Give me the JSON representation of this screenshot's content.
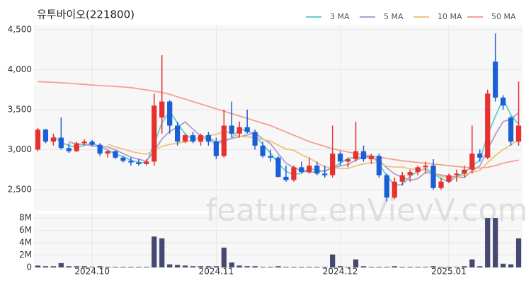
{
  "chart_data": {
    "type": "candlestick",
    "title": "유투바이오(221800)",
    "watermark": "feature.enVievV.com",
    "categories": [
      null,
      null,
      null,
      null,
      null,
      null,
      null,
      "2024.10",
      null,
      null,
      null,
      null,
      null,
      null,
      null,
      null,
      null,
      null,
      null,
      null,
      null,
      null,
      null,
      "2024.11",
      null,
      null,
      null,
      null,
      null,
      null,
      null,
      null,
      null,
      null,
      null,
      null,
      null,
      null,
      null,
      "2024.12",
      null,
      null,
      null,
      null,
      null,
      null,
      null,
      null,
      null,
      null,
      null,
      null,
      null,
      "2025.01",
      null,
      null,
      null,
      null,
      null,
      null,
      null,
      null,
      null
    ],
    "open": [
      3000,
      3250,
      3100,
      3150,
      3020,
      2980,
      3080,
      3100,
      3060,
      2950,
      2980,
      2900,
      2860,
      2840,
      2820,
      2850,
      3400,
      3600,
      3300,
      3100,
      3180,
      3100,
      3180,
      3100,
      2920,
      3300,
      3200,
      3280,
      3220,
      3050,
      2920,
      2900,
      2660,
      2620,
      2780,
      2720,
      2800,
      2700,
      2680,
      2950,
      2850,
      2880,
      2980,
      2880,
      2920,
      2680,
      2400,
      2600,
      2680,
      2720,
      2780,
      2800,
      2520,
      2600,
      2680,
      2700,
      2750,
      2950,
      2900,
      4100,
      3650,
      3400,
      3100
    ],
    "high": [
      3270,
      3260,
      3200,
      3400,
      3080,
      3100,
      3130,
      3120,
      3080,
      3000,
      2990,
      2920,
      2900,
      2880,
      2880,
      3700,
      4180,
      3620,
      3350,
      3200,
      3220,
      3200,
      3220,
      3150,
      3500,
      3600,
      3350,
      3500,
      3250,
      3100,
      3000,
      2920,
      2800,
      2800,
      2850,
      2900,
      2850,
      2800,
      3300,
      2980,
      2900,
      3350,
      3050,
      2950,
      2950,
      2700,
      2650,
      2720,
      2750,
      2800,
      2850,
      2880,
      2650,
      2700,
      2750,
      2800,
      3300,
      3000,
      3750,
      4450,
      3680,
      3420,
      3850
    ],
    "low": [
      2980,
      3080,
      3050,
      3000,
      2960,
      2970,
      3050,
      3040,
      2920,
      2900,
      2880,
      2840,
      2800,
      2800,
      2800,
      2800,
      3200,
      3200,
      3050,
      3080,
      3080,
      3050,
      3050,
      2880,
      2900,
      3150,
      3150,
      3200,
      3000,
      2900,
      2850,
      2650,
      2600,
      2600,
      2700,
      2700,
      2680,
      2650,
      2650,
      2800,
      2780,
      2850,
      2850,
      2820,
      2650,
      2350,
      2380,
      2550,
      2600,
      2680,
      2700,
      2500,
      2500,
      2580,
      2600,
      2650,
      2700,
      2850,
      2880,
      3600,
      3500,
      3050,
      3050
    ],
    "close": [
      3250,
      3100,
      3150,
      3020,
      2980,
      3080,
      3100,
      3060,
      2950,
      2980,
      2900,
      2860,
      2840,
      2820,
      2850,
      3550,
      3600,
      3300,
      3100,
      3180,
      3100,
      3180,
      3100,
      2920,
      3300,
      3200,
      3280,
      3220,
      3050,
      2920,
      2900,
      2660,
      2620,
      2780,
      2720,
      2800,
      2700,
      2680,
      2950,
      2850,
      2880,
      2980,
      2880,
      2920,
      2680,
      2400,
      2600,
      2680,
      2720,
      2780,
      2800,
      2520,
      2600,
      2680,
      2700,
      2750,
      2950,
      2900,
      3700,
      3650,
      3550,
      3100,
      3300
    ],
    "volume": [
      300000,
      200000,
      200000,
      700000,
      200000,
      200000,
      200000,
      100000,
      200000,
      100000,
      100000,
      100000,
      100000,
      100000,
      100000,
      5000000,
      4700000,
      500000,
      400000,
      300000,
      200000,
      200000,
      200000,
      200000,
      3200000,
      800000,
      300000,
      200000,
      200000,
      100000,
      100000,
      200000,
      100000,
      100000,
      100000,
      100000,
      100000,
      100000,
      2100000,
      200000,
      100000,
      1300000,
      200000,
      100000,
      100000,
      100000,
      200000,
      100000,
      100000,
      100000,
      100000,
      200000,
      100000,
      100000,
      100000,
      200000,
      1300000,
      200000,
      8000000,
      8000000,
      600000,
      500000,
      4700000
    ],
    "series": [
      {
        "name": "3 MA",
        "color": "#5ccfd6",
        "values": [
          null,
          null,
          3167,
          3090,
          3050,
          3027,
          3053,
          3080,
          3037,
          2997,
          2943,
          2913,
          2867,
          2840,
          2837,
          3073,
          3333,
          3483,
          3333,
          3193,
          3127,
          3153,
          3127,
          3067,
          3107,
          3140,
          3260,
          3233,
          3183,
          3063,
          2957,
          2827,
          2727,
          2687,
          2707,
          2767,
          2740,
          2727,
          2777,
          2827,
          2893,
          2903,
          2913,
          2927,
          2827,
          2667,
          2560,
          2560,
          2667,
          2727,
          2767,
          2700,
          2640,
          2600,
          2660,
          2710,
          2800,
          2867,
          3183,
          3417,
          3633,
          3433,
          3317
        ]
      },
      {
        "name": "5 MA",
        "color": "#b39ccf",
        "values": [
          null,
          null,
          null,
          null,
          3100,
          3066,
          3066,
          3048,
          3034,
          3034,
          2998,
          2950,
          2906,
          2880,
          2854,
          2984,
          3132,
          3228,
          3280,
          3346,
          3256,
          3172,
          3152,
          3096,
          3120,
          3140,
          3160,
          3184,
          3210,
          3134,
          3074,
          2950,
          2830,
          2776,
          2736,
          2716,
          2724,
          2736,
          2770,
          2796,
          2812,
          2868,
          2908,
          2902,
          2868,
          2772,
          2696,
          2656,
          2616,
          2636,
          2716,
          2700,
          2684,
          2664,
          2660,
          2650,
          2736,
          2796,
          3000,
          3190,
          3350,
          3380,
          3460
        ]
      },
      {
        "name": "10 MA",
        "color": "#f0c27a",
        "values": [
          null,
          null,
          null,
          null,
          null,
          null,
          null,
          null,
          null,
          3067,
          3032,
          3008,
          2977,
          2957,
          2944,
          2991,
          3041,
          3065,
          3080,
          3100,
          3120,
          3152,
          3178,
          3188,
          3233,
          3198,
          3166,
          3158,
          3153,
          3127,
          3107,
          3055,
          3007,
          2993,
          2935,
          2895,
          2837,
          2783,
          2773,
          2766,
          2764,
          2796,
          2822,
          2836,
          2832,
          2792,
          2782,
          2782,
          2759,
          2752,
          2744,
          2698,
          2670,
          2646,
          2648,
          2683,
          2718,
          2740,
          2838,
          2925,
          3000,
          3058,
          3128
        ]
      },
      {
        "name": "50 MA",
        "color": "#f4a08f",
        "values": [
          3850,
          3845,
          3840,
          3835,
          3830,
          3822,
          3815,
          3808,
          3800,
          3795,
          3790,
          3782,
          3775,
          3760,
          3745,
          3730,
          3715,
          3690,
          3660,
          3630,
          3600,
          3570,
          3540,
          3510,
          3480,
          3450,
          3420,
          3390,
          3360,
          3330,
          3300,
          3260,
          3220,
          3180,
          3140,
          3100,
          3070,
          3040,
          3010,
          2990,
          2970,
          2950,
          2935,
          2920,
          2905,
          2890,
          2875,
          2860,
          2850,
          2840,
          2830,
          2820,
          2810,
          2800,
          2790,
          2780,
          2775,
          2770,
          2780,
          2800,
          2830,
          2850,
          2870
        ]
      }
    ],
    "up_color": "#e8312f",
    "down_color": "#1a5fd6",
    "volume_color": "#454870",
    "ylim": [
      2235,
      4560
    ],
    "yticks": [
      {
        "value": 2500,
        "label": "2,500"
      },
      {
        "value": 3000,
        "label": "3,000"
      },
      {
        "value": 3500,
        "label": "3,500"
      },
      {
        "value": 4000,
        "label": "4,000"
      },
      {
        "value": 4500,
        "label": "4,500"
      }
    ],
    "volume_ylim": [
      0,
      8700000
    ],
    "volume_yticks": [
      0,
      {
        "value": 2000000,
        "label": "2M"
      },
      {
        "value": 4000000,
        "label": "4M"
      },
      {
        "value": 6000000,
        "label": "6M"
      },
      {
        "value": 8000000,
        "label": "8M"
      }
    ],
    "grid": true
  }
}
